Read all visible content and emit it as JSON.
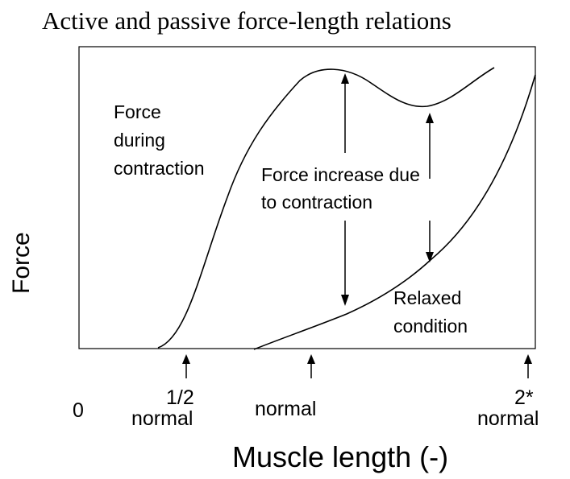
{
  "title": "Active and passive force-length relations",
  "labels": {
    "active_line1": "Force",
    "active_line2": "during",
    "active_line3": "contraction",
    "increase_line1": "Force increase due",
    "increase_line2": "to contraction",
    "relaxed_line1": "Relaxed",
    "relaxed_line2": "condition"
  },
  "y_axis_label": "Force",
  "x_axis_label": "Muscle length (-)",
  "x_ticks": {
    "zero": "0",
    "half_top": "1/2",
    "half_bottom": "normal",
    "normal": "normal",
    "double_top": "2*",
    "double_bottom": "normal"
  }
}
